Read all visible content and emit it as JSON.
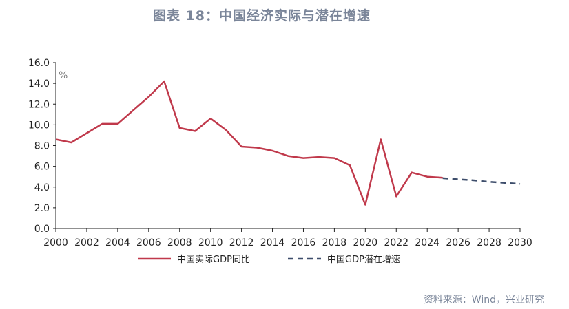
{
  "title": "图表 18：中国经济实际与潜在增速",
  "source": "资料来源：Wind，兴业研究",
  "chart_data": {
    "type": "line",
    "unit_label": "%",
    "ylim": [
      0,
      16
    ],
    "y_ticks": [
      "0.0",
      "2.0",
      "4.0",
      "6.0",
      "8.0",
      "10.0",
      "12.0",
      "14.0",
      "16.0"
    ],
    "xlim": [
      2000,
      2030
    ],
    "x_ticks": [
      "2000",
      "2002",
      "2004",
      "2006",
      "2008",
      "2010",
      "2012",
      "2014",
      "2016",
      "2018",
      "2020",
      "2022",
      "2024",
      "2026",
      "2028",
      "2030"
    ],
    "grid": false,
    "legend_position": "bottom",
    "colors": {
      "actual": "#c0394b",
      "potential": "#3d4d6b"
    },
    "series": [
      {
        "name": "中国实际GDP同比",
        "style": "solid",
        "x": [
          2000,
          2001,
          2002,
          2003,
          2004,
          2005,
          2006,
          2007,
          2008,
          2009,
          2010,
          2011,
          2012,
          2013,
          2014,
          2015,
          2016,
          2017,
          2018,
          2019,
          2020,
          2021,
          2022,
          2023,
          2024,
          2025
        ],
        "y": [
          8.6,
          8.3,
          9.2,
          10.1,
          10.1,
          11.4,
          12.7,
          14.2,
          9.7,
          9.4,
          10.6,
          9.5,
          7.9,
          7.8,
          7.5,
          7.0,
          6.8,
          6.9,
          6.8,
          6.1,
          2.3,
          8.6,
          3.1,
          5.4,
          5.0,
          4.9
        ]
      },
      {
        "name": "中国GDP潜在增速",
        "style": "dashed",
        "x": [
          2025,
          2026,
          2027,
          2028,
          2029,
          2030
        ],
        "y": [
          4.85,
          4.75,
          4.65,
          4.5,
          4.4,
          4.3
        ]
      }
    ]
  }
}
